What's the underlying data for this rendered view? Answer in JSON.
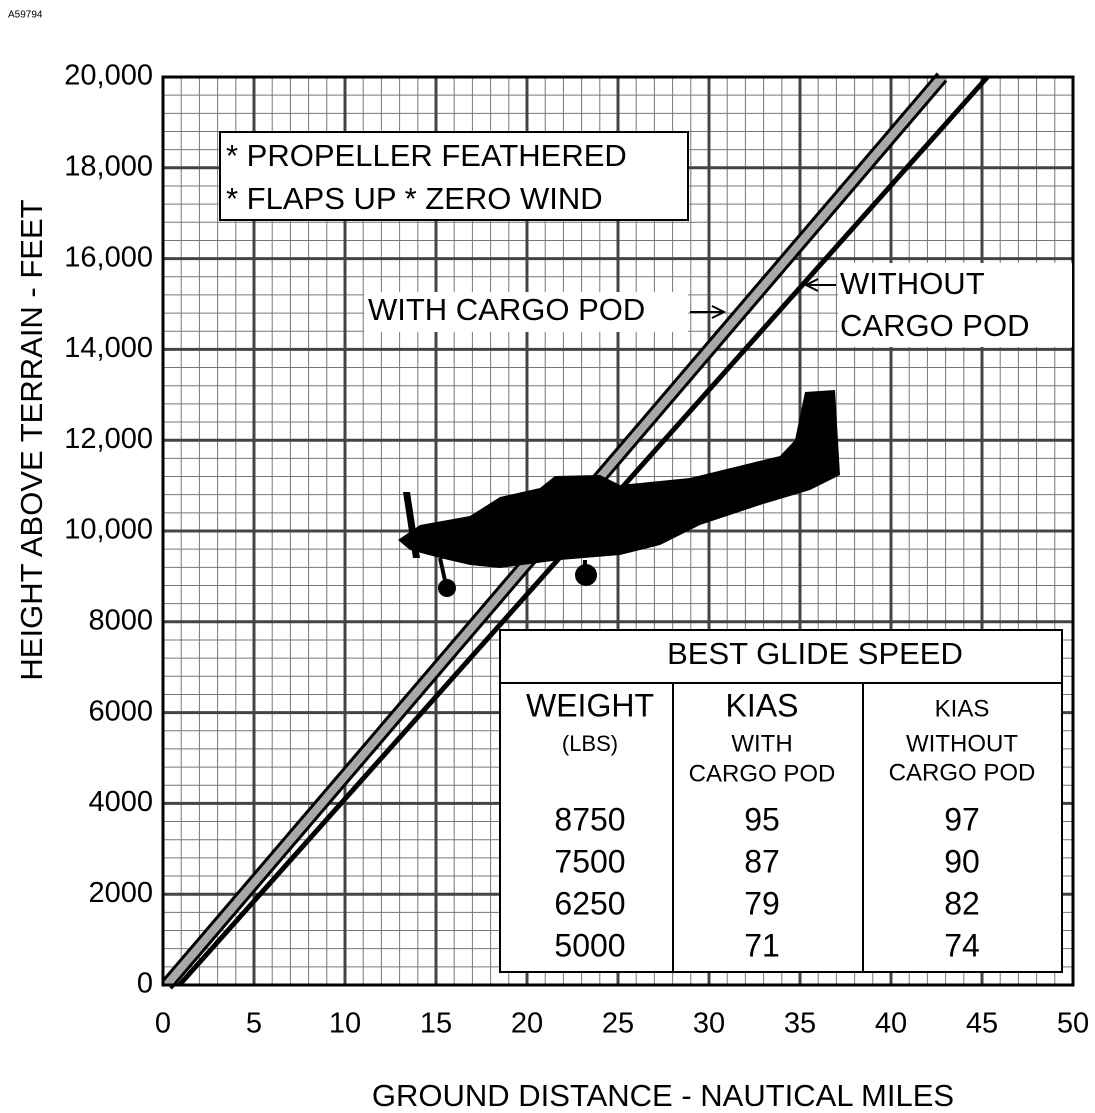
{
  "chart_data": {
    "type": "line",
    "figure_id": "A59794",
    "xlabel": "GROUND DISTANCE - NAUTICAL MILES",
    "ylabel": "HEIGHT ABOVE TERRAIN - FEET",
    "notes": [
      "* PROPELLER FEATHERED",
      "* FLAPS UP  * ZERO WIND"
    ],
    "xlim": [
      0,
      50
    ],
    "xticks": [
      0,
      5,
      10,
      15,
      20,
      25,
      30,
      35,
      40,
      45,
      50
    ],
    "ylim": [
      0,
      20000
    ],
    "yticks": [
      0,
      2000,
      4000,
      6000,
      8000,
      {
        "value": 10000,
        "label": "10,000"
      },
      {
        "value": 12000,
        "label": "12,000"
      },
      {
        "value": 14000,
        "label": "14,000"
      },
      {
        "value": 16000,
        "label": "16,000"
      },
      {
        "value": 18000,
        "label": "18,000"
      },
      {
        "value": 20000,
        "label": "20,000"
      }
    ],
    "grid": true,
    "series": [
      {
        "name": "WITH CARGO POD",
        "color": "#a8a8a8",
        "x": [
          0.2,
          42.8
        ],
        "values": [
          0,
          20000
        ]
      },
      {
        "name": "WITHOUT CARGO POD",
        "color": "#000000",
        "x": [
          0.9,
          45.3
        ],
        "values": [
          0,
          20000
        ]
      }
    ],
    "table": {
      "title": "BEST GLIDE SPEED",
      "columns": [
        [
          "WEIGHT",
          "(LBS)"
        ],
        [
          "KIAS",
          "WITH",
          "CARGO POD"
        ],
        [
          "KIAS",
          "WITHOUT",
          "CARGO POD"
        ]
      ],
      "rows": [
        [
          8750,
          95,
          97
        ],
        [
          7500,
          87,
          90
        ],
        [
          6250,
          79,
          82
        ],
        [
          5000,
          71,
          74
        ]
      ]
    }
  }
}
